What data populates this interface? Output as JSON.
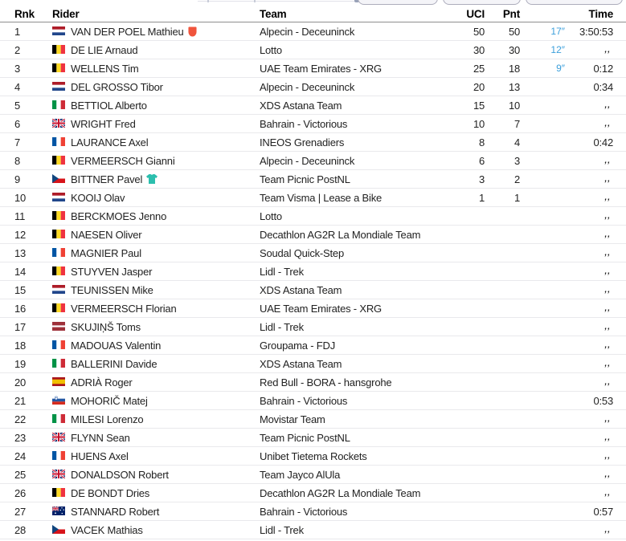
{
  "table": {
    "columns": [
      "Rnk",
      "Rider",
      "Team",
      "UCI",
      "Pnt",
      "Time"
    ],
    "ditto_mark": ",,",
    "rows": [
      {
        "rnk": "1",
        "country": "nl",
        "rider": "VAN DER POEL Mathieu",
        "icon": "red-shield",
        "team": "Alpecin - Deceuninck",
        "uci": "50",
        "pnt": "50",
        "bonus": "17″",
        "time": "3:50:53"
      },
      {
        "rnk": "2",
        "country": "be",
        "rider": "DE LIE Arnaud",
        "icon": "",
        "team": "Lotto",
        "uci": "30",
        "pnt": "30",
        "bonus": "12″",
        "time": ",,"
      },
      {
        "rnk": "3",
        "country": "be",
        "rider": "WELLENS Tim",
        "icon": "",
        "team": "UAE Team Emirates - XRG",
        "uci": "25",
        "pnt": "18",
        "bonus": "9″",
        "time": "0:12"
      },
      {
        "rnk": "4",
        "country": "nl",
        "rider": "DEL GROSSO Tibor",
        "icon": "",
        "team": "Alpecin - Deceuninck",
        "uci": "20",
        "pnt": "13",
        "bonus": "",
        "time": "0:34"
      },
      {
        "rnk": "5",
        "country": "it",
        "rider": "BETTIOL Alberto",
        "icon": "",
        "team": "XDS Astana Team",
        "uci": "15",
        "pnt": "10",
        "bonus": "",
        "time": ",,"
      },
      {
        "rnk": "6",
        "country": "gb",
        "rider": "WRIGHT Fred",
        "icon": "",
        "team": "Bahrain - Victorious",
        "uci": "10",
        "pnt": "7",
        "bonus": "",
        "time": ",,"
      },
      {
        "rnk": "7",
        "country": "fr",
        "rider": "LAURANCE Axel",
        "icon": "",
        "team": "INEOS Grenadiers",
        "uci": "8",
        "pnt": "4",
        "bonus": "",
        "time": "0:42"
      },
      {
        "rnk": "8",
        "country": "be",
        "rider": "VERMEERSCH Gianni",
        "icon": "",
        "team": "Alpecin - Deceuninck",
        "uci": "6",
        "pnt": "3",
        "bonus": "",
        "time": ",,"
      },
      {
        "rnk": "9",
        "country": "cz",
        "rider": "BITTNER Pavel",
        "icon": "teal-jersey",
        "team": "Team Picnic PostNL",
        "uci": "3",
        "pnt": "2",
        "bonus": "",
        "time": ",,"
      },
      {
        "rnk": "10",
        "country": "nl",
        "rider": "KOOIJ Olav",
        "icon": "",
        "team": "Team Visma | Lease a Bike",
        "uci": "1",
        "pnt": "1",
        "bonus": "",
        "time": ",,"
      },
      {
        "rnk": "11",
        "country": "be",
        "rider": "BERCKMOES Jenno",
        "icon": "",
        "team": "Lotto",
        "uci": "",
        "pnt": "",
        "bonus": "",
        "time": ",,"
      },
      {
        "rnk": "12",
        "country": "be",
        "rider": "NAESEN Oliver",
        "icon": "",
        "team": "Decathlon AG2R La Mondiale Team",
        "uci": "",
        "pnt": "",
        "bonus": "",
        "time": ",,"
      },
      {
        "rnk": "13",
        "country": "fr",
        "rider": "MAGNIER Paul",
        "icon": "",
        "team": "Soudal Quick-Step",
        "uci": "",
        "pnt": "",
        "bonus": "",
        "time": ",,"
      },
      {
        "rnk": "14",
        "country": "be",
        "rider": "STUYVEN Jasper",
        "icon": "",
        "team": "Lidl - Trek",
        "uci": "",
        "pnt": "",
        "bonus": "",
        "time": ",,"
      },
      {
        "rnk": "15",
        "country": "nl",
        "rider": "TEUNISSEN Mike",
        "icon": "",
        "team": "XDS Astana Team",
        "uci": "",
        "pnt": "",
        "bonus": "",
        "time": ",,"
      },
      {
        "rnk": "16",
        "country": "be",
        "rider": "VERMEERSCH Florian",
        "icon": "",
        "team": "UAE Team Emirates - XRG",
        "uci": "",
        "pnt": "",
        "bonus": "",
        "time": ",,"
      },
      {
        "rnk": "17",
        "country": "lv",
        "rider": "SKUJIŅŠ Toms",
        "icon": "",
        "team": "Lidl - Trek",
        "uci": "",
        "pnt": "",
        "bonus": "",
        "time": ",,"
      },
      {
        "rnk": "18",
        "country": "fr",
        "rider": "MADOUAS Valentin",
        "icon": "",
        "team": "Groupama - FDJ",
        "uci": "",
        "pnt": "",
        "bonus": "",
        "time": ",,"
      },
      {
        "rnk": "19",
        "country": "it",
        "rider": "BALLERINI Davide",
        "icon": "",
        "team": "XDS Astana Team",
        "uci": "",
        "pnt": "",
        "bonus": "",
        "time": ",,"
      },
      {
        "rnk": "20",
        "country": "es",
        "rider": "ADRIÀ Roger",
        "icon": "",
        "team": "Red Bull - BORA - hansgrohe",
        "uci": "",
        "pnt": "",
        "bonus": "",
        "time": ",,"
      },
      {
        "rnk": "21",
        "country": "si",
        "rider": "MOHORIČ Matej",
        "icon": "",
        "team": "Bahrain - Victorious",
        "uci": "",
        "pnt": "",
        "bonus": "",
        "time": "0:53"
      },
      {
        "rnk": "22",
        "country": "it",
        "rider": "MILESI Lorenzo",
        "icon": "",
        "team": "Movistar Team",
        "uci": "",
        "pnt": "",
        "bonus": "",
        "time": ",,"
      },
      {
        "rnk": "23",
        "country": "gb",
        "rider": "FLYNN Sean",
        "icon": "",
        "team": "Team Picnic PostNL",
        "uci": "",
        "pnt": "",
        "bonus": "",
        "time": ",,"
      },
      {
        "rnk": "24",
        "country": "fr",
        "rider": "HUENS Axel",
        "icon": "",
        "team": "Unibet Tietema Rockets",
        "uci": "",
        "pnt": "",
        "bonus": "",
        "time": ",,"
      },
      {
        "rnk": "25",
        "country": "gb",
        "rider": "DONALDSON Robert",
        "icon": "",
        "team": "Team Jayco AlUla",
        "uci": "",
        "pnt": "",
        "bonus": "",
        "time": ",,"
      },
      {
        "rnk": "26",
        "country": "be",
        "rider": "DE BONDT Dries",
        "icon": "",
        "team": "Decathlon AG2R La Mondiale Team",
        "uci": "",
        "pnt": "",
        "bonus": "",
        "time": ",,"
      },
      {
        "rnk": "27",
        "country": "au",
        "rider": "STANNARD Robert",
        "icon": "",
        "team": "Bahrain - Victorious",
        "uci": "",
        "pnt": "",
        "bonus": "",
        "time": "0:57"
      },
      {
        "rnk": "28",
        "country": "cz",
        "rider": "VACEK Mathias",
        "icon": "",
        "team": "Lidl - Trek",
        "uci": "",
        "pnt": "",
        "bonus": "",
        "time": ",,"
      }
    ]
  },
  "colors": {
    "bonus_seconds_blue": "#3b9fdb",
    "leader_shield_red": "#f0543c",
    "points_jersey_teal": "#2cbfae",
    "header_border": "#8e8e8e",
    "row_divider": "#e9e9ec"
  }
}
